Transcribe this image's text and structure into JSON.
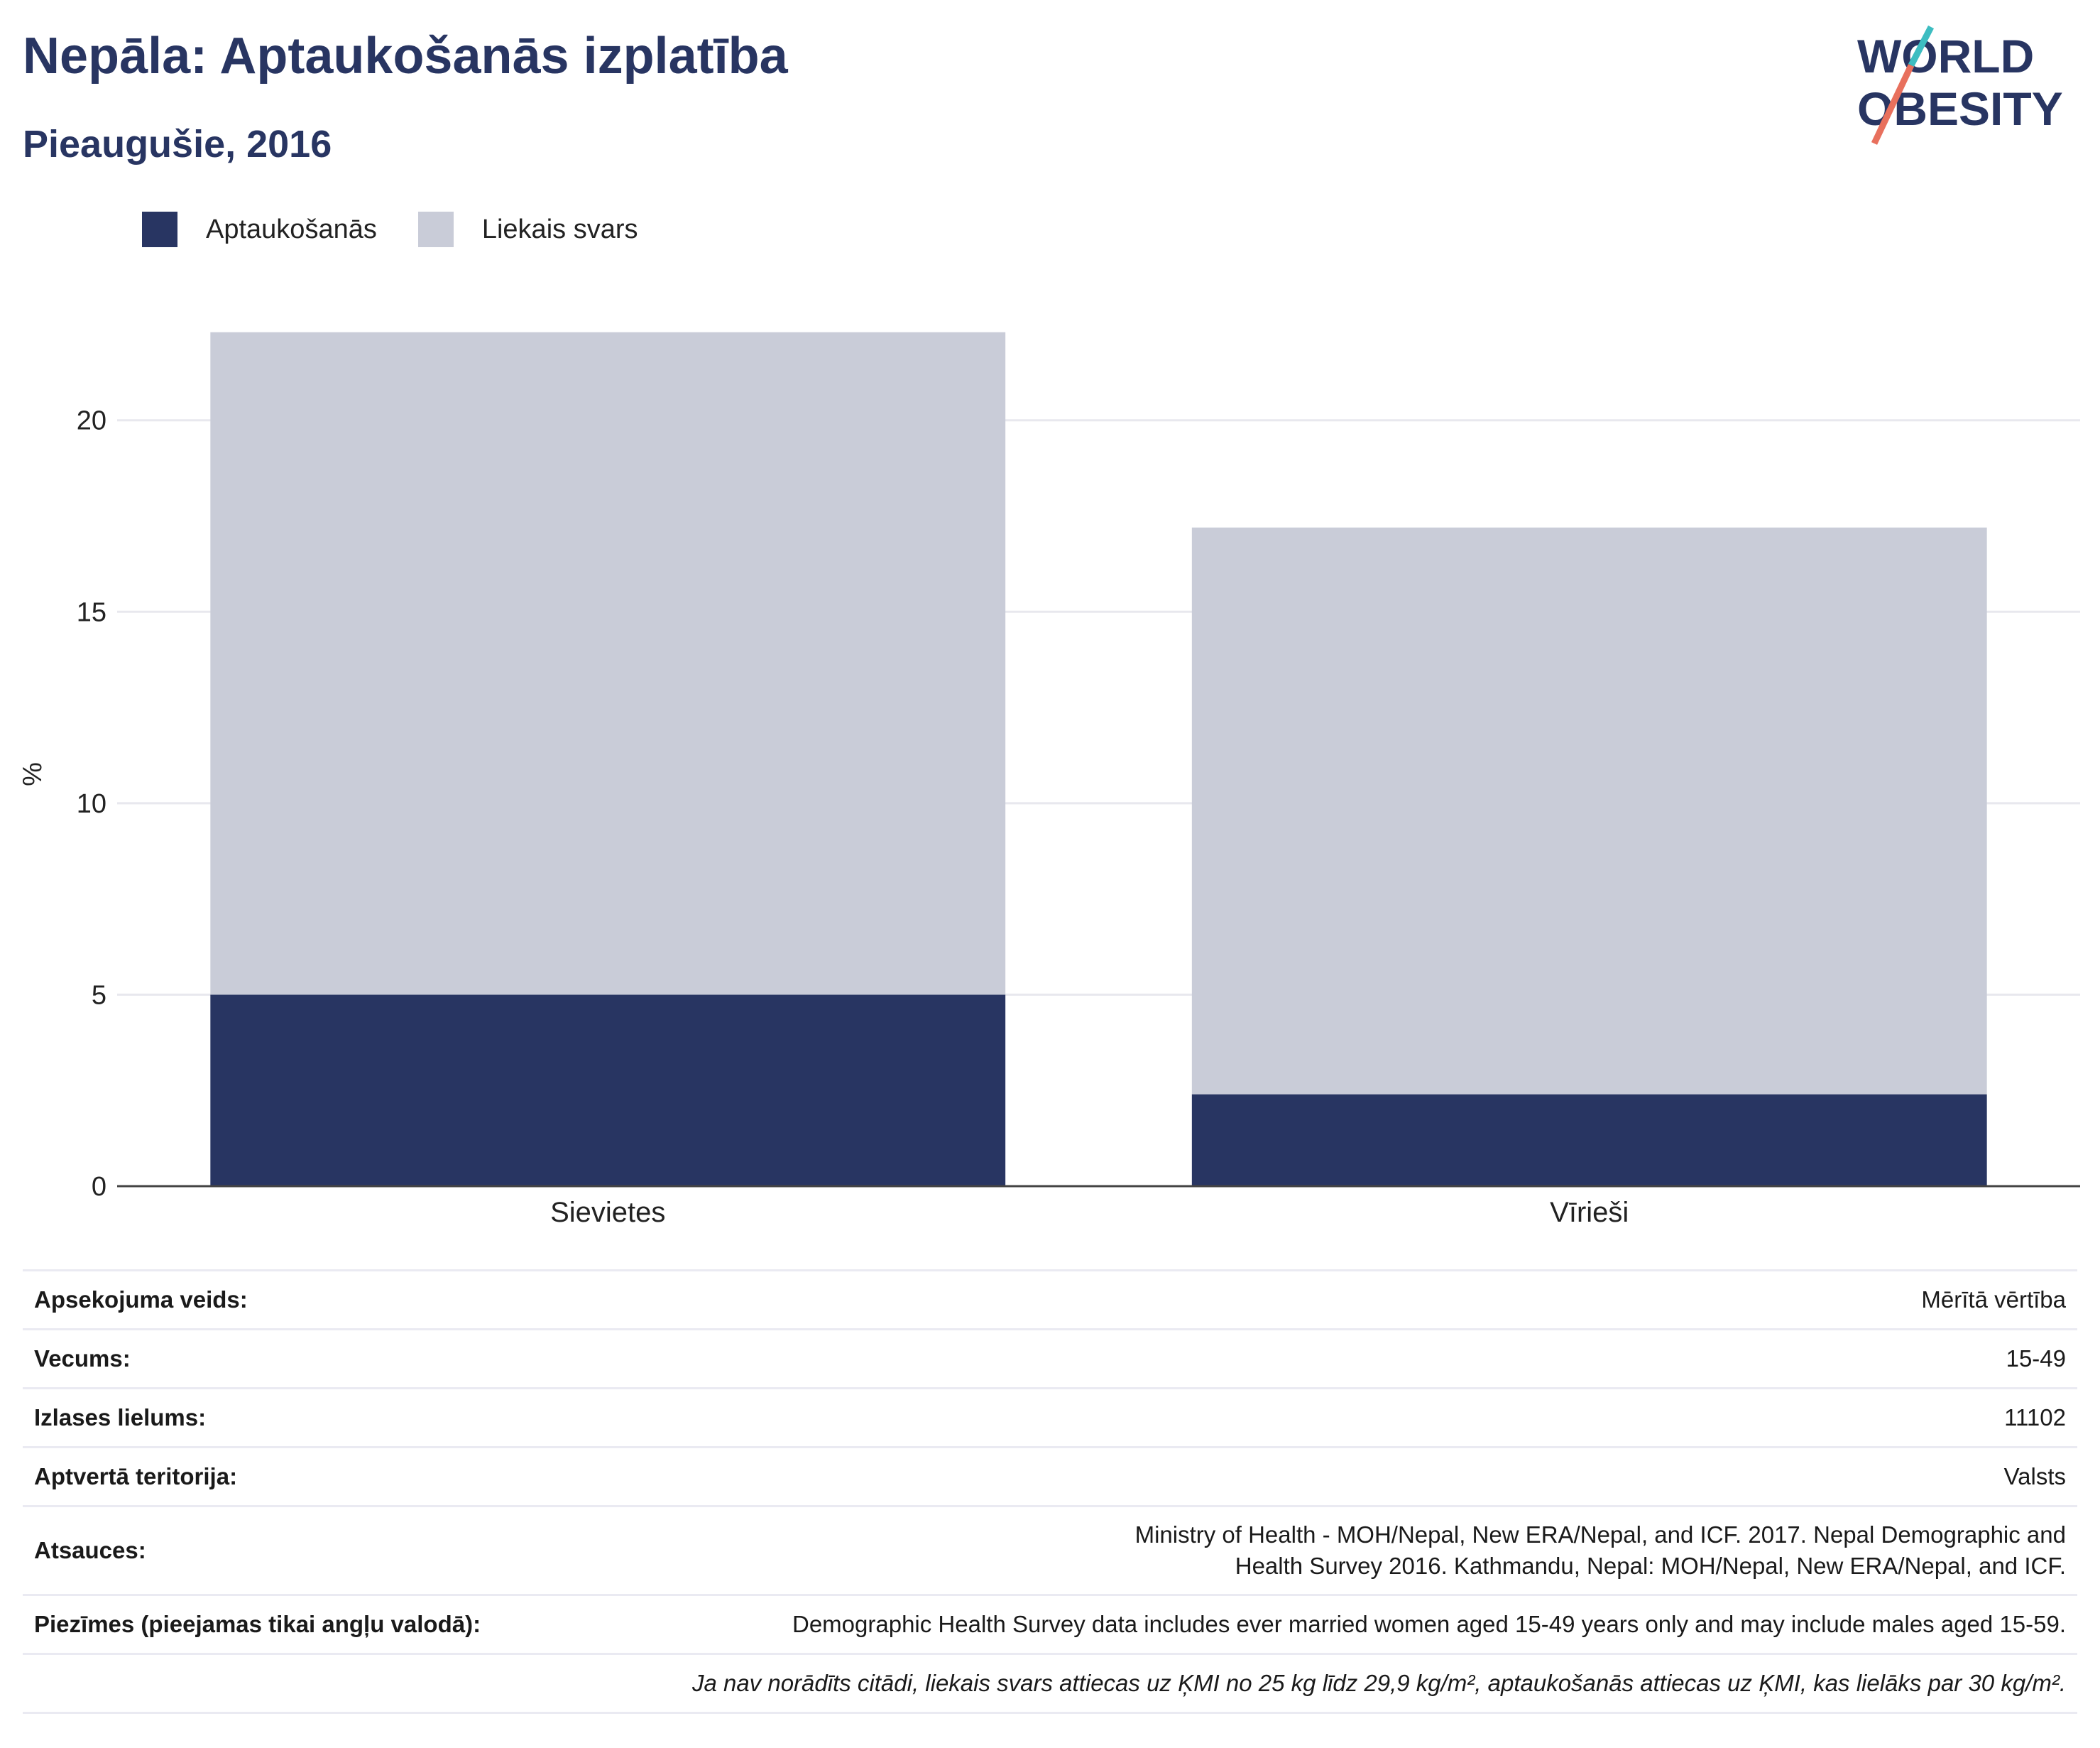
{
  "header": {
    "title": "Nepāla: Aptaukošanās izplatība",
    "subtitle": "Pieaugušie, 2016"
  },
  "logo": {
    "line1": "WORLD",
    "line2": "OBESITY"
  },
  "colors": {
    "obesity": "#283562",
    "overweight": "#c9ccd8",
    "accent_teal": "#3dbdc1",
    "accent_coral": "#e8705d",
    "grid": "#e8e8ee"
  },
  "chart_data": {
    "type": "bar",
    "stacked": true,
    "categories": [
      "Sievietes",
      "Vīrieši"
    ],
    "series": [
      {
        "name": "Aptaukošanās",
        "values": [
          5.0,
          2.4
        ]
      },
      {
        "name": "Liekais svars",
        "values": [
          17.3,
          14.8
        ]
      }
    ],
    "ylabel": "%",
    "ylim": [
      0,
      23
    ],
    "yticks": [
      0,
      5,
      10,
      15,
      20
    ],
    "grid": true,
    "legend": "top-left"
  },
  "table": [
    {
      "key": "Apsekojuma veids:",
      "value": "Mērītā vērtība"
    },
    {
      "key": "Vecums:",
      "value": "15-49"
    },
    {
      "key": "Izlases lielums:",
      "value": "11102"
    },
    {
      "key": "Aptvertā teritorija:",
      "value": "Valsts"
    },
    {
      "key": "Atsauces:",
      "value": "Ministry of Health - MOH/Nepal, New ERA/Nepal, and ICF. 2017. Nepal Demographic and Health Survey 2016. Kathmandu, Nepal: MOH/Nepal, New ERA/Nepal, and ICF."
    },
    {
      "key": "Piezīmes (pieejamas tikai angļu valodā):",
      "value": "Demographic Health Survey data includes ever married women aged 15-49 years only and may include males aged 15-59."
    },
    {
      "key": "",
      "value": "Ja nav norādīts citādi, liekais svars attiecas uz ĶMI no 25 kg līdz 29,9 kg/m², aptaukošanās attiecas uz ĶMI, kas lielāks par 30 kg/m²."
    }
  ]
}
